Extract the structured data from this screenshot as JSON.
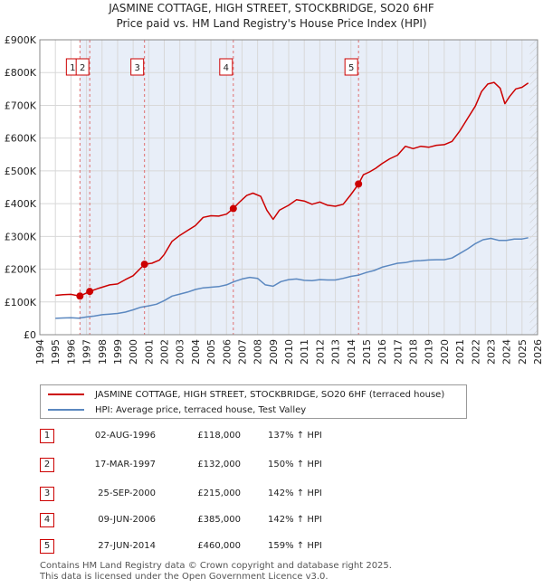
{
  "chart_data": {
    "type": "line",
    "title": "JASMINE COTTAGE, HIGH STREET, STOCKBRIDGE, SO20 6HF",
    "subtitle": "Price paid vs. HM Land Registry's House Price Index (HPI)",
    "xlabel": "",
    "ylabel": "",
    "xlim": [
      1994,
      2026
    ],
    "ylim": [
      0,
      900000
    ],
    "x_ticks": [
      "1994",
      "1995",
      "1996",
      "1997",
      "1998",
      "1999",
      "2000",
      "2001",
      "2002",
      "2003",
      "2004",
      "2005",
      "2006",
      "2007",
      "2008",
      "2009",
      "2010",
      "2011",
      "2012",
      "2013",
      "2014",
      "2015",
      "2016",
      "2017",
      "2018",
      "2019",
      "2020",
      "2021",
      "2022",
      "2023",
      "2024",
      "2025",
      "2026"
    ],
    "y_ticks": [
      {
        "value": 0,
        "label": "£0"
      },
      {
        "value": 100000,
        "label": "£100K"
      },
      {
        "value": 200000,
        "label": "£200K"
      },
      {
        "value": 300000,
        "label": "£300K"
      },
      {
        "value": 400000,
        "label": "£400K"
      },
      {
        "value": 500000,
        "label": "£500K"
      },
      {
        "value": 600000,
        "label": "£600K"
      },
      {
        "value": 700000,
        "label": "£700K"
      },
      {
        "value": 800000,
        "label": "£800K"
      },
      {
        "value": 900000,
        "label": "£900K"
      }
    ],
    "grid": true,
    "series": [
      {
        "name": "JASMINE COTTAGE, HIGH STREET, STOCKBRIDGE, SO20 6HF (terraced house)",
        "color": "#cc0000",
        "x": [
          1995.0,
          1995.5,
          1996.0,
          1996.58,
          1997.21,
          1997.8,
          1998.5,
          1999.0,
          1999.5,
          2000.0,
          2000.73,
          2001.2,
          2001.7,
          2002.0,
          2002.5,
          2003.0,
          2003.5,
          2004.0,
          2004.5,
          2005.0,
          2005.5,
          2006.0,
          2006.44,
          2006.8,
          2007.3,
          2007.7,
          2008.2,
          2008.6,
          2009.0,
          2009.4,
          2010.0,
          2010.5,
          2011.0,
          2011.5,
          2012.0,
          2012.5,
          2013.0,
          2013.5,
          2014.0,
          2014.49,
          2014.8,
          2015.2,
          2015.6,
          2016.0,
          2016.5,
          2017.0,
          2017.5,
          2018.0,
          2018.5,
          2019.0,
          2019.5,
          2020.0,
          2020.5,
          2021.0,
          2021.5,
          2022.0,
          2022.4,
          2022.8,
          2023.2,
          2023.6,
          2023.9,
          2024.2,
          2024.6,
          2025.0,
          2025.4
        ],
        "values": [
          120000,
          122000,
          123000,
          118000,
          132000,
          142000,
          152000,
          155000,
          168000,
          180000,
          215000,
          218000,
          228000,
          245000,
          285000,
          303000,
          318000,
          333000,
          358000,
          363000,
          362000,
          368000,
          385000,
          403000,
          425000,
          432000,
          422000,
          380000,
          352000,
          380000,
          395000,
          412000,
          408000,
          398000,
          405000,
          395000,
          392000,
          398000,
          428000,
          460000,
          488000,
          497000,
          508000,
          522000,
          537000,
          548000,
          575000,
          568000,
          575000,
          572000,
          578000,
          580000,
          590000,
          622000,
          660000,
          698000,
          742000,
          765000,
          770000,
          752000,
          705000,
          727000,
          750000,
          755000,
          768000
        ]
      },
      {
        "name": "HPI: Average price, terraced house, Test Valley",
        "color": "#5b88c0",
        "x": [
          1995.0,
          1995.5,
          1996.0,
          1996.5,
          1997.0,
          1997.5,
          1998.0,
          1998.5,
          1999.0,
          1999.5,
          2000.0,
          2000.5,
          2001.0,
          2001.5,
          2002.0,
          2002.5,
          2003.0,
          2003.5,
          2004.0,
          2004.5,
          2005.0,
          2005.5,
          2006.0,
          2006.5,
          2007.0,
          2007.5,
          2008.0,
          2008.5,
          2009.0,
          2009.5,
          2010.0,
          2010.5,
          2011.0,
          2011.5,
          2012.0,
          2012.5,
          2013.0,
          2013.5,
          2014.0,
          2014.5,
          2015.0,
          2015.5,
          2016.0,
          2016.5,
          2017.0,
          2017.5,
          2018.0,
          2018.5,
          2019.0,
          2019.5,
          2020.0,
          2020.5,
          2021.0,
          2021.5,
          2022.0,
          2022.5,
          2023.0,
          2023.5,
          2024.0,
          2024.5,
          2025.0,
          2025.4
        ],
        "values": [
          50000,
          51000,
          51500,
          50500,
          54000,
          57000,
          61000,
          63000,
          65000,
          69000,
          76000,
          84000,
          88000,
          93000,
          104000,
          118000,
          124000,
          130000,
          138000,
          143000,
          145000,
          147000,
          152000,
          162000,
          170000,
          175000,
          172000,
          152000,
          148000,
          162000,
          168000,
          170000,
          166000,
          165000,
          168000,
          167000,
          167000,
          172000,
          178000,
          182000,
          190000,
          196000,
          206000,
          212000,
          218000,
          220000,
          225000,
          226000,
          228000,
          229000,
          229000,
          234000,
          248000,
          262000,
          278000,
          290000,
          294000,
          288000,
          288000,
          292000,
          292000,
          296000
        ]
      }
    ],
    "transactions": [
      {
        "num": "1",
        "x": 1996.58,
        "value": 118000
      },
      {
        "num": "2",
        "x": 1997.21,
        "value": 132000
      },
      {
        "num": "3",
        "x": 2000.73,
        "value": 215000
      },
      {
        "num": "4",
        "x": 2006.44,
        "value": 385000
      },
      {
        "num": "5",
        "x": 2014.49,
        "value": 460000
      }
    ]
  },
  "legend": {
    "property_label": "JASMINE COTTAGE, HIGH STREET, STOCKBRIDGE, SO20 6HF (terraced house)",
    "hpi_label": "HPI: Average price, terraced house, Test Valley",
    "property_color": "#cc0000",
    "hpi_color": "#5b88c0"
  },
  "table": [
    {
      "num": "1",
      "date": "02-AUG-1996",
      "price": "£118,000",
      "hpi": "137% ↑ HPI"
    },
    {
      "num": "2",
      "date": "17-MAR-1997",
      "price": "£132,000",
      "hpi": "150% ↑ HPI"
    },
    {
      "num": "3",
      "date": "25-SEP-2000",
      "price": "£215,000",
      "hpi": "142% ↑ HPI"
    },
    {
      "num": "4",
      "date": "09-JUN-2006",
      "price": "£385,000",
      "hpi": "142% ↑ HPI"
    },
    {
      "num": "5",
      "date": "27-JUN-2014",
      "price": "£460,000",
      "hpi": "159% ↑ HPI"
    }
  ],
  "footer": {
    "line1": "Contains HM Land Registry data © Crown copyright and database right 2025.",
    "line2": "This data is licensed under the Open Government Licence v3.0."
  }
}
